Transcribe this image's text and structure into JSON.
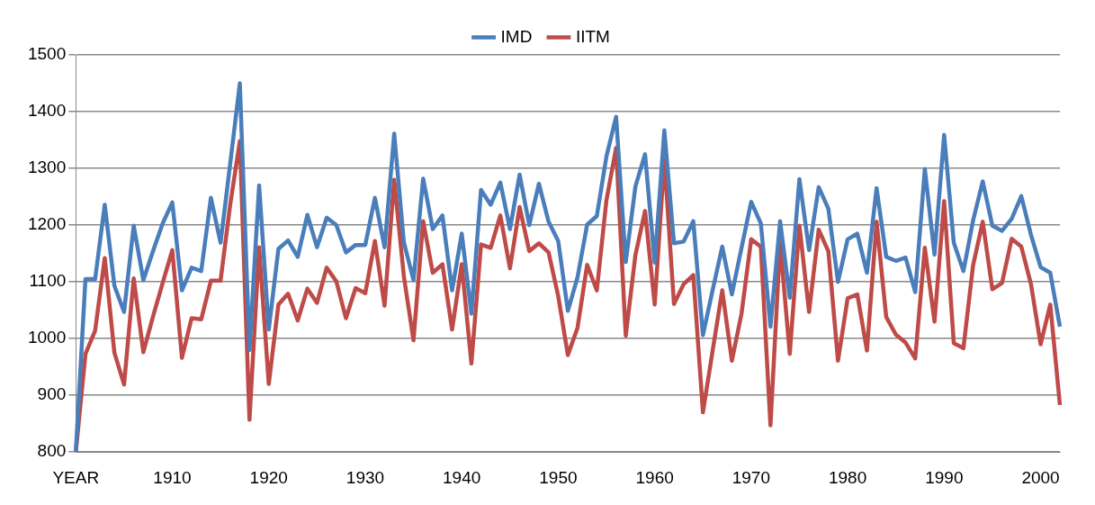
{
  "chart_data": {
    "type": "line",
    "categories": [
      "YEAR",
      null,
      null,
      null,
      null,
      null,
      null,
      null,
      null,
      null,
      "1910",
      null,
      null,
      null,
      null,
      null,
      null,
      null,
      null,
      null,
      "1920",
      null,
      null,
      null,
      null,
      null,
      null,
      null,
      null,
      null,
      "1930",
      null,
      null,
      null,
      null,
      null,
      null,
      null,
      null,
      null,
      "1940",
      null,
      null,
      null,
      null,
      null,
      null,
      null,
      null,
      null,
      "1950",
      null,
      null,
      null,
      null,
      null,
      null,
      null,
      null,
      null,
      "1960",
      null,
      null,
      null,
      null,
      null,
      null,
      null,
      null,
      null,
      "1970",
      null,
      null,
      null,
      null,
      null,
      null,
      null,
      null,
      null,
      "1980",
      null,
      null,
      null,
      null,
      null,
      null,
      null,
      null,
      null,
      "1990",
      null,
      null,
      null,
      null,
      null,
      null,
      null,
      null,
      null,
      "2000",
      null,
      null
    ],
    "series": [
      {
        "name": "IMD",
        "color": "#4a7ebb",
        "values": [
          800,
          1105,
          1105,
          1236,
          1093,
          1047,
          1199,
          1103,
          1154,
          1203,
          1240,
          1085,
          1125,
          1119,
          1248,
          1169,
          1308,
          1450,
          980,
          1270,
          1016,
          1158,
          1173,
          1144,
          1218,
          1161,
          1213,
          1200,
          1152,
          1165,
          1165,
          1248,
          1161,
          1361,
          1170,
          1103,
          1282,
          1193,
          1217,
          1085,
          1185,
          1044,
          1262,
          1236,
          1275,
          1193,
          1289,
          1200,
          1273,
          1206,
          1172,
          1049,
          1108,
          1201,
          1216,
          1321,
          1391,
          1135,
          1268,
          1325,
          1134,
          1367,
          1168,
          1171,
          1207,
          1006,
          1085,
          1162,
          1078,
          1160,
          1241,
          1203,
          1021,
          1207,
          1072,
          1281,
          1156,
          1267,
          1229,
          1100,
          1175,
          1185,
          1116,
          1265,
          1144,
          1137,
          1143,
          1082,
          1299,
          1148,
          1359,
          1169,
          1119,
          1208,
          1277,
          1199,
          1190,
          1211,
          1251,
          1183,
          1126,
          1116,
          1021
        ]
      },
      {
        "name": "IITM",
        "color": "#be4b48",
        "values": [
          800,
          973,
          1014,
          1142,
          975,
          919,
          1106,
          976,
          1039,
          1098,
          1156,
          966,
          1036,
          1034,
          1102,
          1102,
          1236,
          1348,
          857,
          1161,
          920,
          1060,
          1079,
          1032,
          1088,
          1063,
          1125,
          1101,
          1036,
          1089,
          1080,
          1172,
          1058,
          1280,
          1110,
          997,
          1207,
          1116,
          1131,
          1016,
          1131,
          956,
          1166,
          1160,
          1217,
          1124,
          1232,
          1154,
          1168,
          1152,
          1075,
          971,
          1019,
          1130,
          1085,
          1244,
          1336,
          1005,
          1147,
          1225,
          1060,
          1316,
          1061,
          1096,
          1112,
          870,
          978,
          1085,
          961,
          1044,
          1175,
          1162,
          847,
          1169,
          973,
          1199,
          1047,
          1192,
          1154,
          961,
          1071,
          1078,
          979,
          1206,
          1038,
          1007,
          993,
          965,
          1160,
          1030,
          1242,
          992,
          983,
          1129,
          1206,
          1087,
          1098,
          1176,
          1162,
          1096,
          990,
          1060,
          883
        ]
      }
    ],
    "ylim": [
      800,
      1500
    ],
    "yticks": [
      800,
      900,
      1000,
      1100,
      1200,
      1300,
      1400,
      1500
    ],
    "grid": "y",
    "legend": "top",
    "marker": "none",
    "line_style": "solid"
  }
}
